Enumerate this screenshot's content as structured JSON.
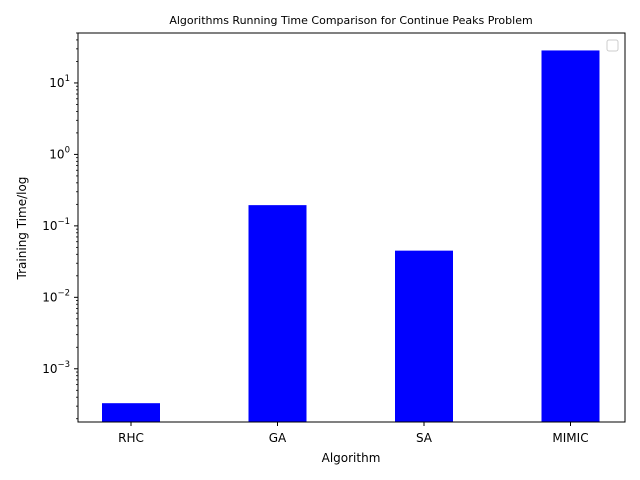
{
  "chart_data": {
    "type": "bar",
    "title": "Algorithms Running Time Comparison for Continue Peaks Problem",
    "xlabel": "Algorithm",
    "ylabel": "Training Time/log",
    "yscale": "log",
    "ylim": [
      0.00018,
      50
    ],
    "categories": [
      "RHC",
      "GA",
      "SA",
      "MIMIC"
    ],
    "values": [
      0.00033,
      0.195,
      0.045,
      28.5
    ],
    "bar_color": "#0000ff",
    "grid": false,
    "legend": "upper right, empty",
    "yticks": [
      {
        "base": "10",
        "exp": "−3",
        "value": 0.001
      },
      {
        "base": "10",
        "exp": "−2",
        "value": 0.01
      },
      {
        "base": "10",
        "exp": "−1",
        "value": 0.1
      },
      {
        "base": "10",
        "exp": "0",
        "value": 1
      },
      {
        "base": "10",
        "exp": "1",
        "value": 10
      }
    ]
  }
}
